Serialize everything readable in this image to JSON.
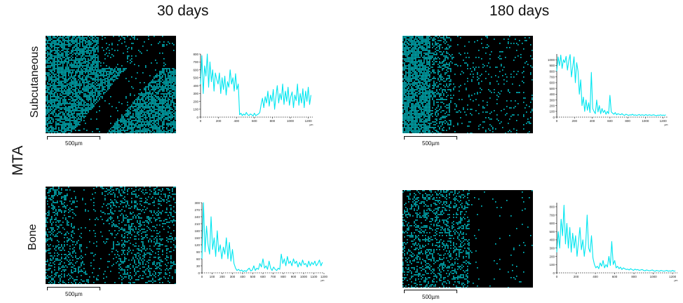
{
  "column_titles": [
    "30 days",
    "180 days"
  ],
  "group_label": "MTA",
  "row_labels": [
    "Subcutaneous",
    "Bone"
  ],
  "scale_bar_label": "500µm",
  "colors": {
    "signal": "#00e6f0",
    "micrograph_bg": "#000000",
    "axis": "#222222"
  },
  "chart_data": [
    {
      "type": "line",
      "panel": "Subcutaneous / 30 days",
      "xlim": [
        0,
        1250
      ],
      "ylim": [
        0,
        800
      ],
      "x_ticks": [
        0,
        200,
        400,
        600,
        800,
        1000,
        1200
      ],
      "y_ticks": [
        0,
        100,
        200,
        300,
        400,
        500,
        600,
        700,
        800
      ],
      "x_unit": "µm",
      "series": [
        {
          "color": "#00e6f0",
          "x": [
            0,
            15,
            30,
            45,
            60,
            75,
            90,
            105,
            120,
            135,
            150,
            165,
            180,
            195,
            210,
            225,
            240,
            255,
            270,
            285,
            300,
            315,
            330,
            345,
            360,
            375,
            390,
            405,
            420,
            435,
            450,
            465,
            480,
            495,
            510,
            525,
            540,
            555,
            570,
            585,
            600,
            615,
            630,
            645,
            660,
            675,
            690,
            705,
            720,
            735,
            750,
            765,
            780,
            795,
            810,
            825,
            840,
            855,
            870,
            885,
            900,
            915,
            930,
            945,
            960,
            975,
            990,
            1005,
            1020,
            1035,
            1050,
            1065,
            1080,
            1095,
            1110,
            1125,
            1140,
            1155,
            1170,
            1185,
            1200,
            1215,
            1230
          ],
          "y": [
            420,
            780,
            300,
            650,
            520,
            800,
            380,
            700,
            450,
            600,
            330,
            560,
            480,
            420,
            560,
            300,
            500,
            350,
            520,
            280,
            450,
            380,
            600,
            420,
            500,
            330,
            550,
            350,
            420,
            30,
            50,
            20,
            40,
            25,
            60,
            30,
            20,
            40,
            30,
            15,
            50,
            20,
            30,
            40,
            60,
            160,
            240,
            120,
            260,
            180,
            330,
            140,
            280,
            200,
            350,
            100,
            260,
            400,
            180,
            300,
            220,
            420,
            160,
            330,
            200,
            380,
            150,
            260,
            320,
            120,
            280,
            210,
            420,
            150,
            300,
            180,
            360,
            120,
            330,
            200,
            380,
            160,
            280
          ]
        }
      ]
    },
    {
      "type": "line",
      "panel": "Subcutaneous / 180 days",
      "xlim": [
        0,
        1250
      ],
      "ylim": [
        0,
        1100
      ],
      "x_ticks": [
        0,
        200,
        400,
        600,
        800,
        1000,
        1200
      ],
      "y_ticks": [
        0,
        100,
        200,
        300,
        400,
        500,
        600,
        700,
        800,
        900,
        1000
      ],
      "x_unit": "µm",
      "series": [
        {
          "color": "#00e6f0",
          "x": [
            0,
            15,
            30,
            45,
            60,
            75,
            90,
            105,
            120,
            135,
            150,
            165,
            180,
            195,
            210,
            225,
            240,
            255,
            270,
            285,
            300,
            315,
            330,
            345,
            360,
            375,
            390,
            405,
            420,
            435,
            450,
            465,
            480,
            495,
            510,
            525,
            540,
            555,
            570,
            585,
            600,
            615,
            630,
            645,
            660,
            675,
            690,
            705,
            720,
            735,
            750,
            765,
            780,
            795,
            810,
            825,
            840,
            855,
            870,
            885,
            900,
            915,
            930,
            945,
            960,
            975,
            990,
            1005,
            1020,
            1035,
            1050,
            1065,
            1080,
            1095,
            1110,
            1125,
            1140,
            1155,
            1170,
            1185,
            1200,
            1215,
            1230
          ],
          "y": [
            800,
            1050,
            900,
            1080,
            850,
            1000,
            950,
            1060,
            820,
            980,
            1090,
            700,
            880,
            1050,
            600,
            950,
            800,
            400,
            650,
            200,
            350,
            100,
            300,
            120,
            250,
            80,
            780,
            150,
            100,
            60,
            300,
            90,
            200,
            60,
            150,
            80,
            120,
            50,
            100,
            60,
            380,
            90,
            70,
            50,
            80,
            40,
            60,
            50,
            40,
            60,
            40,
            30,
            50,
            40,
            30,
            40,
            35,
            50,
            30,
            40,
            30,
            35,
            45,
            30,
            40,
            35,
            30,
            45,
            30,
            35,
            40,
            30,
            35,
            40,
            30,
            25,
            35,
            30,
            40,
            30,
            35,
            30,
            40
          ]
        }
      ]
    },
    {
      "type": "line",
      "panel": "Bone / 30 days",
      "xlim": [
        0,
        1200
      ],
      "ylim": [
        0,
        300
      ],
      "x_ticks": [
        0,
        100,
        200,
        300,
        400,
        500,
        600,
        700,
        800,
        900,
        1000,
        1100,
        1200
      ],
      "y_ticks": [
        0,
        30,
        60,
        90,
        120,
        150,
        180,
        210,
        240,
        270,
        300
      ],
      "x_unit": "µm",
      "series": [
        {
          "color": "#00e6f0",
          "x": [
            0,
            15,
            30,
            45,
            60,
            75,
            90,
            105,
            120,
            135,
            150,
            165,
            180,
            195,
            210,
            225,
            240,
            255,
            270,
            285,
            300,
            315,
            330,
            345,
            360,
            375,
            390,
            405,
            420,
            435,
            450,
            465,
            480,
            495,
            510,
            525,
            540,
            555,
            570,
            585,
            600,
            615,
            630,
            645,
            660,
            675,
            690,
            705,
            720,
            735,
            750,
            765,
            780,
            795,
            810,
            825,
            840,
            855,
            870,
            885,
            900,
            915,
            930,
            945,
            960,
            975,
            990,
            1005,
            1020,
            1035,
            1050,
            1065,
            1080,
            1095,
            1110,
            1125,
            1140,
            1155,
            1170,
            1185
          ],
          "y": [
            60,
            300,
            90,
            200,
            120,
            80,
            240,
            100,
            150,
            70,
            180,
            90,
            120,
            60,
            110,
            80,
            150,
            60,
            130,
            50,
            100,
            40,
            20,
            10,
            15,
            8,
            12,
            5,
            10,
            6,
            14,
            20,
            8,
            12,
            30,
            10,
            20,
            15,
            40,
            25,
            60,
            20,
            30,
            15,
            50,
            20,
            10,
            25,
            15,
            10,
            20,
            15,
            80,
            40,
            60,
            30,
            70,
            40,
            50,
            30,
            60,
            40,
            50,
            25,
            45,
            30,
            55,
            35,
            40,
            25,
            50,
            30,
            45,
            35,
            50,
            30,
            40,
            55,
            30,
            45
          ]
        }
      ]
    },
    {
      "type": "line",
      "panel": "Bone / 180 days",
      "xlim": [
        0,
        1250
      ],
      "ylim": [
        0,
        850
      ],
      "x_ticks": [
        0,
        200,
        400,
        600,
        800,
        1000,
        1200
      ],
      "y_ticks": [
        0,
        100,
        200,
        300,
        400,
        500,
        600,
        700,
        800
      ],
      "x_unit": "µm",
      "series": [
        {
          "color": "#00e6f0",
          "x": [
            0,
            15,
            30,
            45,
            60,
            75,
            90,
            105,
            120,
            135,
            150,
            165,
            180,
            195,
            210,
            225,
            240,
            255,
            270,
            285,
            300,
            315,
            330,
            345,
            360,
            375,
            390,
            405,
            420,
            435,
            450,
            465,
            480,
            495,
            510,
            525,
            540,
            555,
            570,
            585,
            600,
            615,
            630,
            645,
            660,
            675,
            690,
            705,
            720,
            735,
            750,
            765,
            780,
            795,
            810,
            825,
            840,
            855,
            870,
            885,
            900,
            915,
            930,
            945,
            960,
            975,
            990,
            1005,
            1020,
            1035,
            1050,
            1065,
            1080,
            1095,
            1110,
            1125,
            1140,
            1155,
            1170,
            1185,
            1200,
            1215,
            1230
          ],
          "y": [
            250,
            500,
            300,
            650,
            450,
            820,
            350,
            600,
            300,
            550,
            250,
            480,
            300,
            450,
            200,
            380,
            550,
            280,
            400,
            200,
            350,
            700,
            300,
            250,
            450,
            180,
            100,
            60,
            80,
            50,
            120,
            80,
            150,
            60,
            100,
            70,
            200,
            90,
            380,
            100,
            150,
            60,
            80,
            50,
            70,
            40,
            60,
            50,
            40,
            45,
            35,
            50,
            40,
            30,
            45,
            35,
            40,
            30,
            35,
            40,
            30,
            25,
            35,
            30,
            25,
            30,
            35,
            25,
            20,
            30,
            25,
            20,
            30,
            25,
            20,
            25,
            30,
            20,
            25,
            20,
            30,
            20,
            25
          ]
        }
      ]
    }
  ]
}
